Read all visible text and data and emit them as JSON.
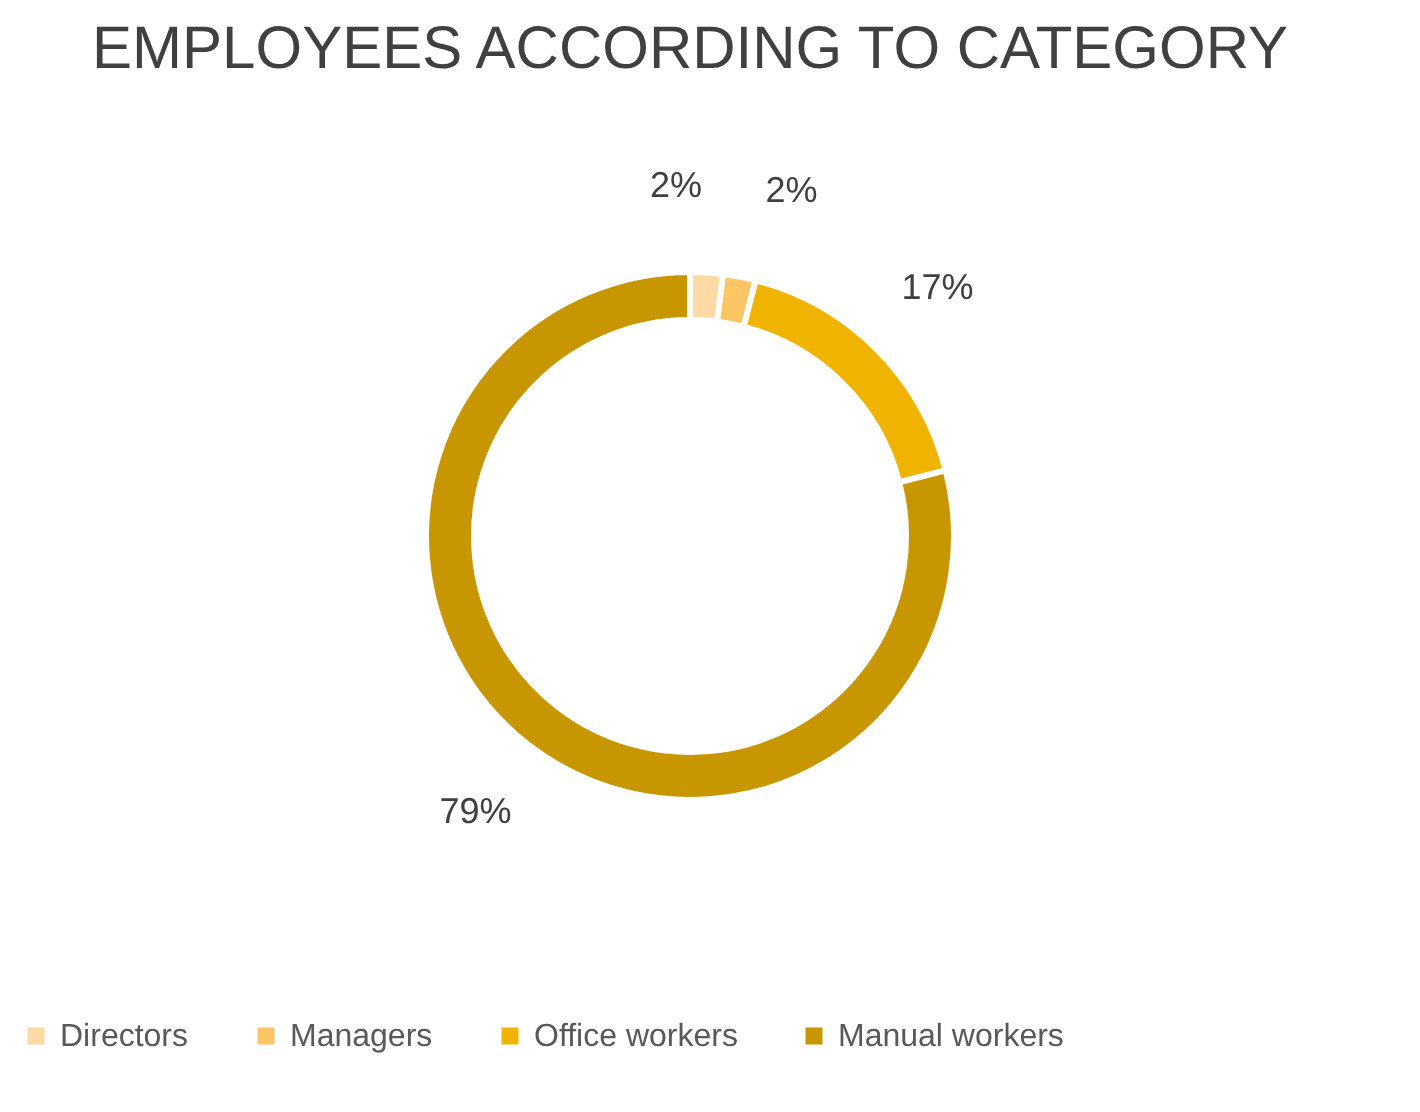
{
  "chart_data": {
    "type": "donut",
    "title": "EMPLOYEES ACCORDING TO CATEGORY",
    "categories": [
      "Directors",
      "Managers",
      "Office workers",
      "Manual workers"
    ],
    "values": [
      2,
      2,
      17,
      79
    ],
    "value_labels": [
      "2%",
      "2%",
      "17%",
      "79%"
    ],
    "colors": [
      "#fdd9a3",
      "#fdc565",
      "#f0b400",
      "#c89600"
    ],
    "legend": "bottom"
  }
}
